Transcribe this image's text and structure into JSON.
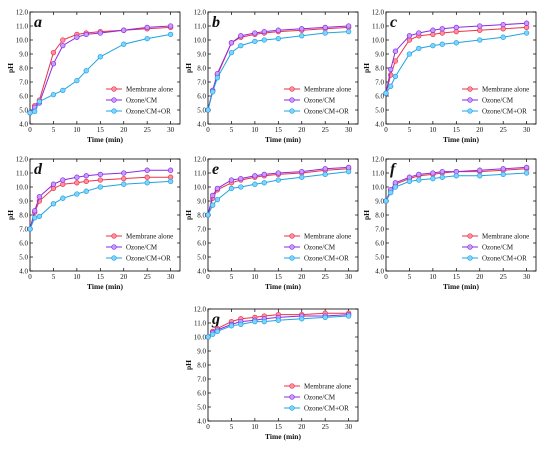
{
  "figure": {
    "series_colors": [
      "#e8334a",
      "#8a2be2",
      "#1fa3e0"
    ],
    "marker_fill_light": [
      "#ff8fa0",
      "#c89bff",
      "#7fd3ff"
    ]
  },
  "chart_data": [
    {
      "panel": "a",
      "type": "line",
      "xlabel": "Time (min)",
      "ylabel": "pH",
      "xlim": [
        0,
        32
      ],
      "ylim": [
        4.0,
        12.0
      ],
      "xticks": [
        0,
        5,
        10,
        15,
        20,
        25,
        30
      ],
      "yticks": [
        4.0,
        5.0,
        6.0,
        7.0,
        8.0,
        9.0,
        10.0,
        11.0,
        12.0
      ],
      "legend": "bottom-right",
      "series": [
        {
          "name": "Membrane alone",
          "x": [
            0,
            1,
            2,
            5,
            7,
            10,
            12,
            15,
            20,
            25,
            30
          ],
          "y": [
            4.8,
            5.3,
            5.7,
            9.1,
            10.0,
            10.4,
            10.5,
            10.6,
            10.7,
            10.8,
            10.9
          ]
        },
        {
          "name": "Ozone/CM",
          "x": [
            0,
            1,
            2,
            5,
            7,
            10,
            12,
            15,
            20,
            25,
            30
          ],
          "y": [
            4.8,
            5.2,
            5.5,
            8.3,
            9.6,
            10.2,
            10.4,
            10.5,
            10.7,
            10.9,
            11.0
          ]
        },
        {
          "name": "Ozone/CM+OR",
          "x": [
            0,
            1,
            2,
            5,
            7,
            10,
            12,
            15,
            20,
            25,
            30
          ],
          "y": [
            4.8,
            4.9,
            5.6,
            6.1,
            6.4,
            7.1,
            7.8,
            8.8,
            9.7,
            10.1,
            10.4
          ]
        }
      ]
    },
    {
      "panel": "b",
      "type": "line",
      "xlabel": "Time (min)",
      "ylabel": "pH",
      "xlim": [
        0,
        32
      ],
      "ylim": [
        4.0,
        12.0
      ],
      "xticks": [
        0,
        5,
        10,
        15,
        20,
        25,
        30
      ],
      "yticks": [
        4.0,
        5.0,
        6.0,
        7.0,
        8.0,
        9.0,
        10.0,
        11.0,
        12.0
      ],
      "legend": "bottom-right",
      "series": [
        {
          "name": "Membrane alone",
          "x": [
            0,
            1,
            2,
            5,
            7,
            10,
            12,
            15,
            20,
            25,
            30
          ],
          "y": [
            5.0,
            6.4,
            7.5,
            9.8,
            10.2,
            10.4,
            10.5,
            10.6,
            10.7,
            10.8,
            10.9
          ]
        },
        {
          "name": "Ozone/CM",
          "x": [
            0,
            1,
            2,
            5,
            7,
            10,
            12,
            15,
            20,
            25,
            30
          ],
          "y": [
            5.0,
            6.4,
            7.6,
            9.8,
            10.3,
            10.5,
            10.6,
            10.7,
            10.8,
            10.9,
            11.0
          ]
        },
        {
          "name": "Ozone/CM+OR",
          "x": [
            0,
            1,
            2,
            5,
            7,
            10,
            12,
            15,
            20,
            25,
            30
          ],
          "y": [
            5.0,
            6.3,
            7.3,
            9.1,
            9.6,
            9.9,
            10.0,
            10.1,
            10.3,
            10.5,
            10.6
          ]
        }
      ]
    },
    {
      "panel": "c",
      "type": "line",
      "xlabel": "Time (min)",
      "ylabel": "pH",
      "xlim": [
        0,
        32
      ],
      "ylim": [
        4.0,
        12.0
      ],
      "xticks": [
        0,
        5,
        10,
        15,
        20,
        25,
        30
      ],
      "yticks": [
        4.0,
        5.0,
        6.0,
        7.0,
        8.0,
        9.0,
        10.0,
        11.0,
        12.0
      ],
      "legend": "bottom-right",
      "series": [
        {
          "name": "Membrane alone",
          "x": [
            0,
            1,
            2,
            5,
            7,
            10,
            12,
            15,
            20,
            25,
            30
          ],
          "y": [
            6.2,
            7.5,
            8.5,
            10.0,
            10.3,
            10.4,
            10.5,
            10.6,
            10.7,
            10.8,
            10.9
          ]
        },
        {
          "name": "Ozone/CM",
          "x": [
            0,
            1,
            2,
            5,
            7,
            10,
            12,
            15,
            20,
            25,
            30
          ],
          "y": [
            6.2,
            7.9,
            9.2,
            10.3,
            10.5,
            10.7,
            10.8,
            10.9,
            11.0,
            11.1,
            11.2
          ]
        },
        {
          "name": "Ozone/CM+OR",
          "x": [
            0,
            1,
            2,
            5,
            7,
            10,
            12,
            15,
            20,
            25,
            30
          ],
          "y": [
            6.2,
            6.7,
            7.4,
            9.0,
            9.4,
            9.6,
            9.7,
            9.8,
            10.0,
            10.2,
            10.5
          ]
        }
      ]
    },
    {
      "panel": "d",
      "type": "line",
      "xlabel": "Time (min)",
      "ylabel": "pH",
      "xlim": [
        0,
        32
      ],
      "ylim": [
        4.0,
        12.0
      ],
      "xticks": [
        0,
        5,
        10,
        15,
        20,
        25,
        30
      ],
      "yticks": [
        4.0,
        5.0,
        6.0,
        7.0,
        8.0,
        9.0,
        10.0,
        11.0,
        12.0
      ],
      "legend": "bottom-right",
      "series": [
        {
          "name": "Membrane alone",
          "x": [
            0,
            1,
            2,
            5,
            7,
            10,
            12,
            15,
            20,
            25,
            30
          ],
          "y": [
            7.0,
            8.2,
            9.0,
            9.9,
            10.2,
            10.3,
            10.4,
            10.5,
            10.6,
            10.7,
            10.7
          ]
        },
        {
          "name": "Ozone/CM",
          "x": [
            0,
            1,
            2,
            5,
            7,
            10,
            12,
            15,
            20,
            25,
            30
          ],
          "y": [
            7.0,
            8.3,
            9.3,
            10.2,
            10.5,
            10.7,
            10.8,
            10.9,
            11.0,
            11.2,
            11.2
          ]
        },
        {
          "name": "Ozone/CM+OR",
          "x": [
            0,
            1,
            2,
            5,
            7,
            10,
            12,
            15,
            20,
            25,
            30
          ],
          "y": [
            7.0,
            7.8,
            7.9,
            8.8,
            9.2,
            9.5,
            9.7,
            10.0,
            10.2,
            10.3,
            10.4
          ]
        }
      ]
    },
    {
      "panel": "e",
      "type": "line",
      "xlabel": "Time (min)",
      "ylabel": "pH",
      "xlim": [
        0,
        32
      ],
      "ylim": [
        4.0,
        12.0
      ],
      "xticks": [
        0,
        5,
        10,
        15,
        20,
        25,
        30
      ],
      "yticks": [
        4.0,
        5.0,
        6.0,
        7.0,
        8.0,
        9.0,
        10.0,
        11.0,
        12.0
      ],
      "legend": "bottom-right",
      "series": [
        {
          "name": "Membrane alone",
          "x": [
            0,
            1,
            2,
            5,
            7,
            10,
            12,
            15,
            20,
            25,
            30
          ],
          "y": [
            8.0,
            9.2,
            9.8,
            10.3,
            10.5,
            10.7,
            10.8,
            10.9,
            11.0,
            11.2,
            11.3
          ]
        },
        {
          "name": "Ozone/CM",
          "x": [
            0,
            1,
            2,
            5,
            7,
            10,
            12,
            15,
            20,
            25,
            30
          ],
          "y": [
            8.0,
            9.4,
            9.9,
            10.5,
            10.6,
            10.8,
            10.9,
            11.0,
            11.1,
            11.3,
            11.4
          ]
        },
        {
          "name": "Ozone/CM+OR",
          "x": [
            0,
            1,
            2,
            5,
            7,
            10,
            12,
            15,
            20,
            25,
            30
          ],
          "y": [
            8.0,
            8.7,
            9.1,
            9.9,
            10.0,
            10.2,
            10.3,
            10.5,
            10.7,
            10.9,
            11.1
          ]
        }
      ]
    },
    {
      "panel": "f",
      "type": "line",
      "xlabel": "Time (min)",
      "ylabel": "pH",
      "xlim": [
        0,
        32
      ],
      "ylim": [
        4.0,
        12.0
      ],
      "xticks": [
        0,
        5,
        10,
        15,
        20,
        25,
        30
      ],
      "yticks": [
        4.0,
        5.0,
        6.0,
        7.0,
        8.0,
        9.0,
        10.0,
        11.0,
        12.0
      ],
      "legend": "bottom-right",
      "series": [
        {
          "name": "Membrane alone",
          "x": [
            0,
            1,
            2,
            5,
            7,
            10,
            12,
            15,
            20,
            25,
            30
          ],
          "y": [
            9.0,
            9.7,
            10.2,
            10.6,
            10.8,
            10.9,
            11.0,
            11.1,
            11.1,
            11.2,
            11.3
          ]
        },
        {
          "name": "Ozone/CM",
          "x": [
            0,
            1,
            2,
            5,
            7,
            10,
            12,
            15,
            20,
            25,
            30
          ],
          "y": [
            9.0,
            9.8,
            10.3,
            10.7,
            10.9,
            11.0,
            11.1,
            11.1,
            11.2,
            11.3,
            11.4
          ]
        },
        {
          "name": "Ozone/CM+OR",
          "x": [
            0,
            1,
            2,
            5,
            7,
            10,
            12,
            15,
            20,
            25,
            30
          ],
          "y": [
            9.0,
            9.6,
            10.0,
            10.4,
            10.5,
            10.6,
            10.7,
            10.8,
            10.8,
            10.9,
            11.0
          ]
        }
      ]
    },
    {
      "panel": "g",
      "type": "line",
      "xlabel": "Time (min)",
      "ylabel": "pH",
      "xlim": [
        0,
        32
      ],
      "ylim": [
        4.0,
        12.0
      ],
      "xticks": [
        0,
        5,
        10,
        15,
        20,
        25,
        30
      ],
      "yticks": [
        4.0,
        5.0,
        6.0,
        7.0,
        8.0,
        9.0,
        10.0,
        11.0,
        12.0
      ],
      "legend": "bottom-right",
      "series": [
        {
          "name": "Membrane alone",
          "x": [
            0,
            1,
            2,
            5,
            7,
            10,
            12,
            15,
            20,
            25,
            30
          ],
          "y": [
            10.0,
            10.4,
            10.6,
            11.1,
            11.3,
            11.4,
            11.5,
            11.6,
            11.6,
            11.7,
            11.7
          ]
        },
        {
          "name": "Ozone/CM",
          "x": [
            0,
            1,
            2,
            5,
            7,
            10,
            12,
            15,
            20,
            25,
            30
          ],
          "y": [
            10.0,
            10.3,
            10.5,
            10.9,
            11.1,
            11.2,
            11.3,
            11.4,
            11.5,
            11.5,
            11.6
          ]
        },
        {
          "name": "Ozone/CM+OR",
          "x": [
            0,
            1,
            2,
            5,
            7,
            10,
            12,
            15,
            20,
            25,
            30
          ],
          "y": [
            10.0,
            10.2,
            10.4,
            10.8,
            10.9,
            11.1,
            11.1,
            11.2,
            11.3,
            11.4,
            11.5
          ]
        }
      ]
    }
  ]
}
